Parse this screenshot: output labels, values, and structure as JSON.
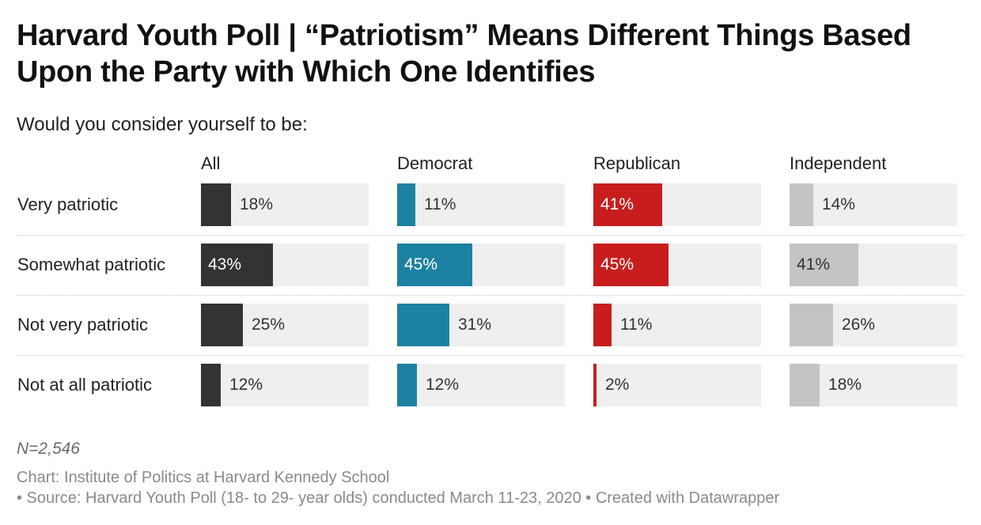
{
  "title": "Harvard Youth Poll | “Patriotism” Means Different Things Based Upon the Party with Which One Identifies",
  "subtitle": "Would you consider yourself to be:",
  "notes": {
    "n": "N=2,546",
    "credit": "Chart: Institute of Politics at Harvard Kennedy School",
    "source": "• Source: Harvard Youth Poll (18- to 29- year olds) conducted March 11-23, 2020 • Created with Datawrapper"
  },
  "colors": {
    "All": "#333333",
    "Democrat": "#1d81a2",
    "Republican": "#c71e1d",
    "Independent": "#c4c4c4",
    "track": "#efefef",
    "label_dark": "#333333",
    "label_light": "#ffffff"
  },
  "chart_data": {
    "type": "bar",
    "orientation": "horizontal",
    "layout": "small-multiples",
    "title": "Harvard Youth Poll | “Patriotism” Means Different Things Based Upon the Party with Which One Identifies",
    "subtitle": "Would you consider yourself to be:",
    "categories": [
      "Very patriotic",
      "Somewhat patriotic",
      "Not very patriotic",
      "Not at all patriotic"
    ],
    "xlim": [
      0,
      100
    ],
    "unit": "%",
    "series": [
      {
        "name": "All",
        "values": [
          18,
          43,
          25,
          12
        ],
        "labels": [
          "18%",
          "43%",
          "25%",
          "12%"
        ]
      },
      {
        "name": "Democrat",
        "values": [
          11,
          45,
          31,
          12
        ],
        "labels": [
          "11%",
          "45%",
          "31%",
          "12%"
        ]
      },
      {
        "name": "Republican",
        "values": [
          41,
          45,
          11,
          2
        ],
        "labels": [
          "41%",
          "45%",
          "11%",
          "2%"
        ]
      },
      {
        "name": "Independent",
        "values": [
          14,
          41,
          26,
          18
        ],
        "labels": [
          "14%",
          "41%",
          "26%",
          "18%"
        ]
      }
    ]
  }
}
